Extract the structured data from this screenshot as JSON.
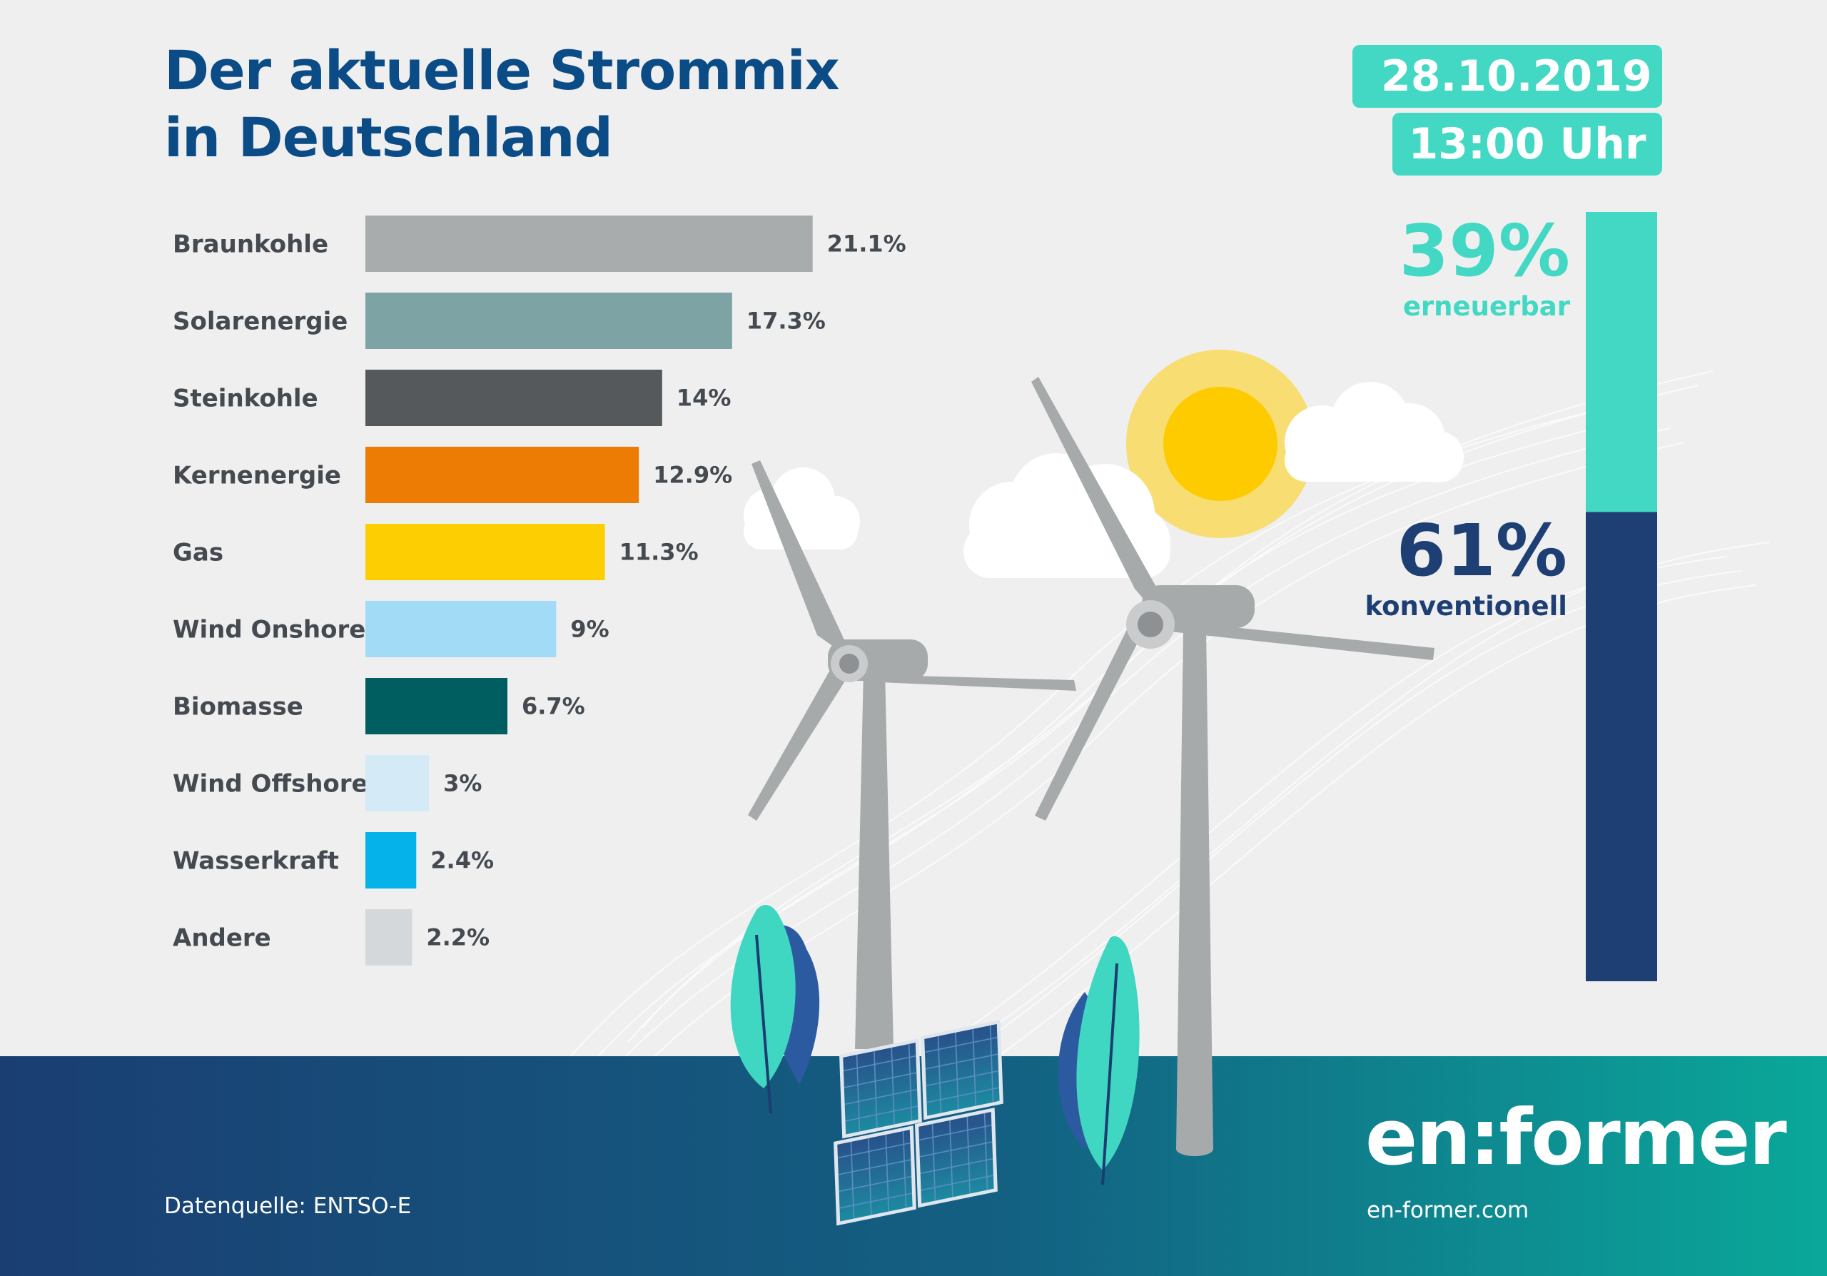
{
  "header": {
    "title_line1": "Der aktuelle Strommix",
    "title_line2": "in Deutschland",
    "date": "28.10.2019",
    "time": "13:00 Uhr"
  },
  "share": {
    "renewable_pct": "39%",
    "renewable_label": "erneuerbar",
    "renewable_value": 39,
    "conventional_pct": "61%",
    "conventional_label": "konventionell",
    "conventional_value": 61,
    "renewable_color": "#42d8c3",
    "conventional_color": "#1e3f73"
  },
  "footer": {
    "source": "Datenquelle: ENTSO-E",
    "brand": "en:former",
    "url": "en-former.com"
  },
  "chart_data": {
    "type": "bar",
    "orientation": "horizontal",
    "title": "Der aktuelle Strommix in Deutschland",
    "xlabel": "",
    "ylabel": "",
    "categories": [
      "Braunkohle",
      "Solarenergie",
      "Steinkohle",
      "Kernenergie",
      "Gas",
      "Wind Onshore",
      "Biomasse",
      "Wind Offshore",
      "Wasserkraft",
      "Andere"
    ],
    "values": [
      21.1,
      17.3,
      14,
      12.9,
      11.3,
      9,
      6.7,
      3,
      2.4,
      2.2
    ],
    "value_labels": [
      "21.1%",
      "17.3%",
      "14%",
      "12.9%",
      "11.3%",
      "9%",
      "6.7%",
      "3%",
      "2.4%",
      "2.2%"
    ],
    "colors": [
      "#a9acac",
      "#7ea3a4",
      "#56595b",
      "#ec7c04",
      "#fdcf03",
      "#a2dbf6",
      "#005e61",
      "#d4ebf7",
      "#06b2ea",
      "#d5d8da"
    ],
    "unit": "%",
    "grid": false,
    "legend": "none"
  }
}
